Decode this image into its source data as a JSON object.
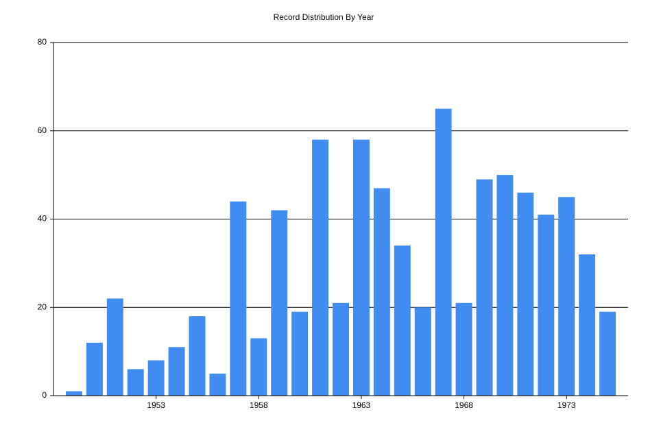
{
  "chart_data": {
    "type": "bar",
    "title": "Record Distribution By Year",
    "x": [
      1949,
      1950,
      1951,
      1952,
      1953,
      1954,
      1955,
      1956,
      1957,
      1958,
      1959,
      1960,
      1961,
      1962,
      1963,
      1964,
      1965,
      1966,
      1967,
      1968,
      1969,
      1970,
      1971,
      1972,
      1973,
      1974,
      1975
    ],
    "values": [
      1,
      12,
      22,
      6,
      8,
      11,
      18,
      5,
      44,
      13,
      42,
      19,
      58,
      21,
      58,
      47,
      34,
      20,
      65,
      21,
      49,
      50,
      46,
      41,
      45,
      32,
      19
    ],
    "color": "#418cf0",
    "xlim": [
      1948,
      1976
    ],
    "xticks": [
      1953,
      1958,
      1963,
      1968,
      1973
    ],
    "ylim": [
      0,
      80
    ],
    "yticks": [
      0,
      20,
      40,
      60,
      80
    ],
    "grid": true
  }
}
